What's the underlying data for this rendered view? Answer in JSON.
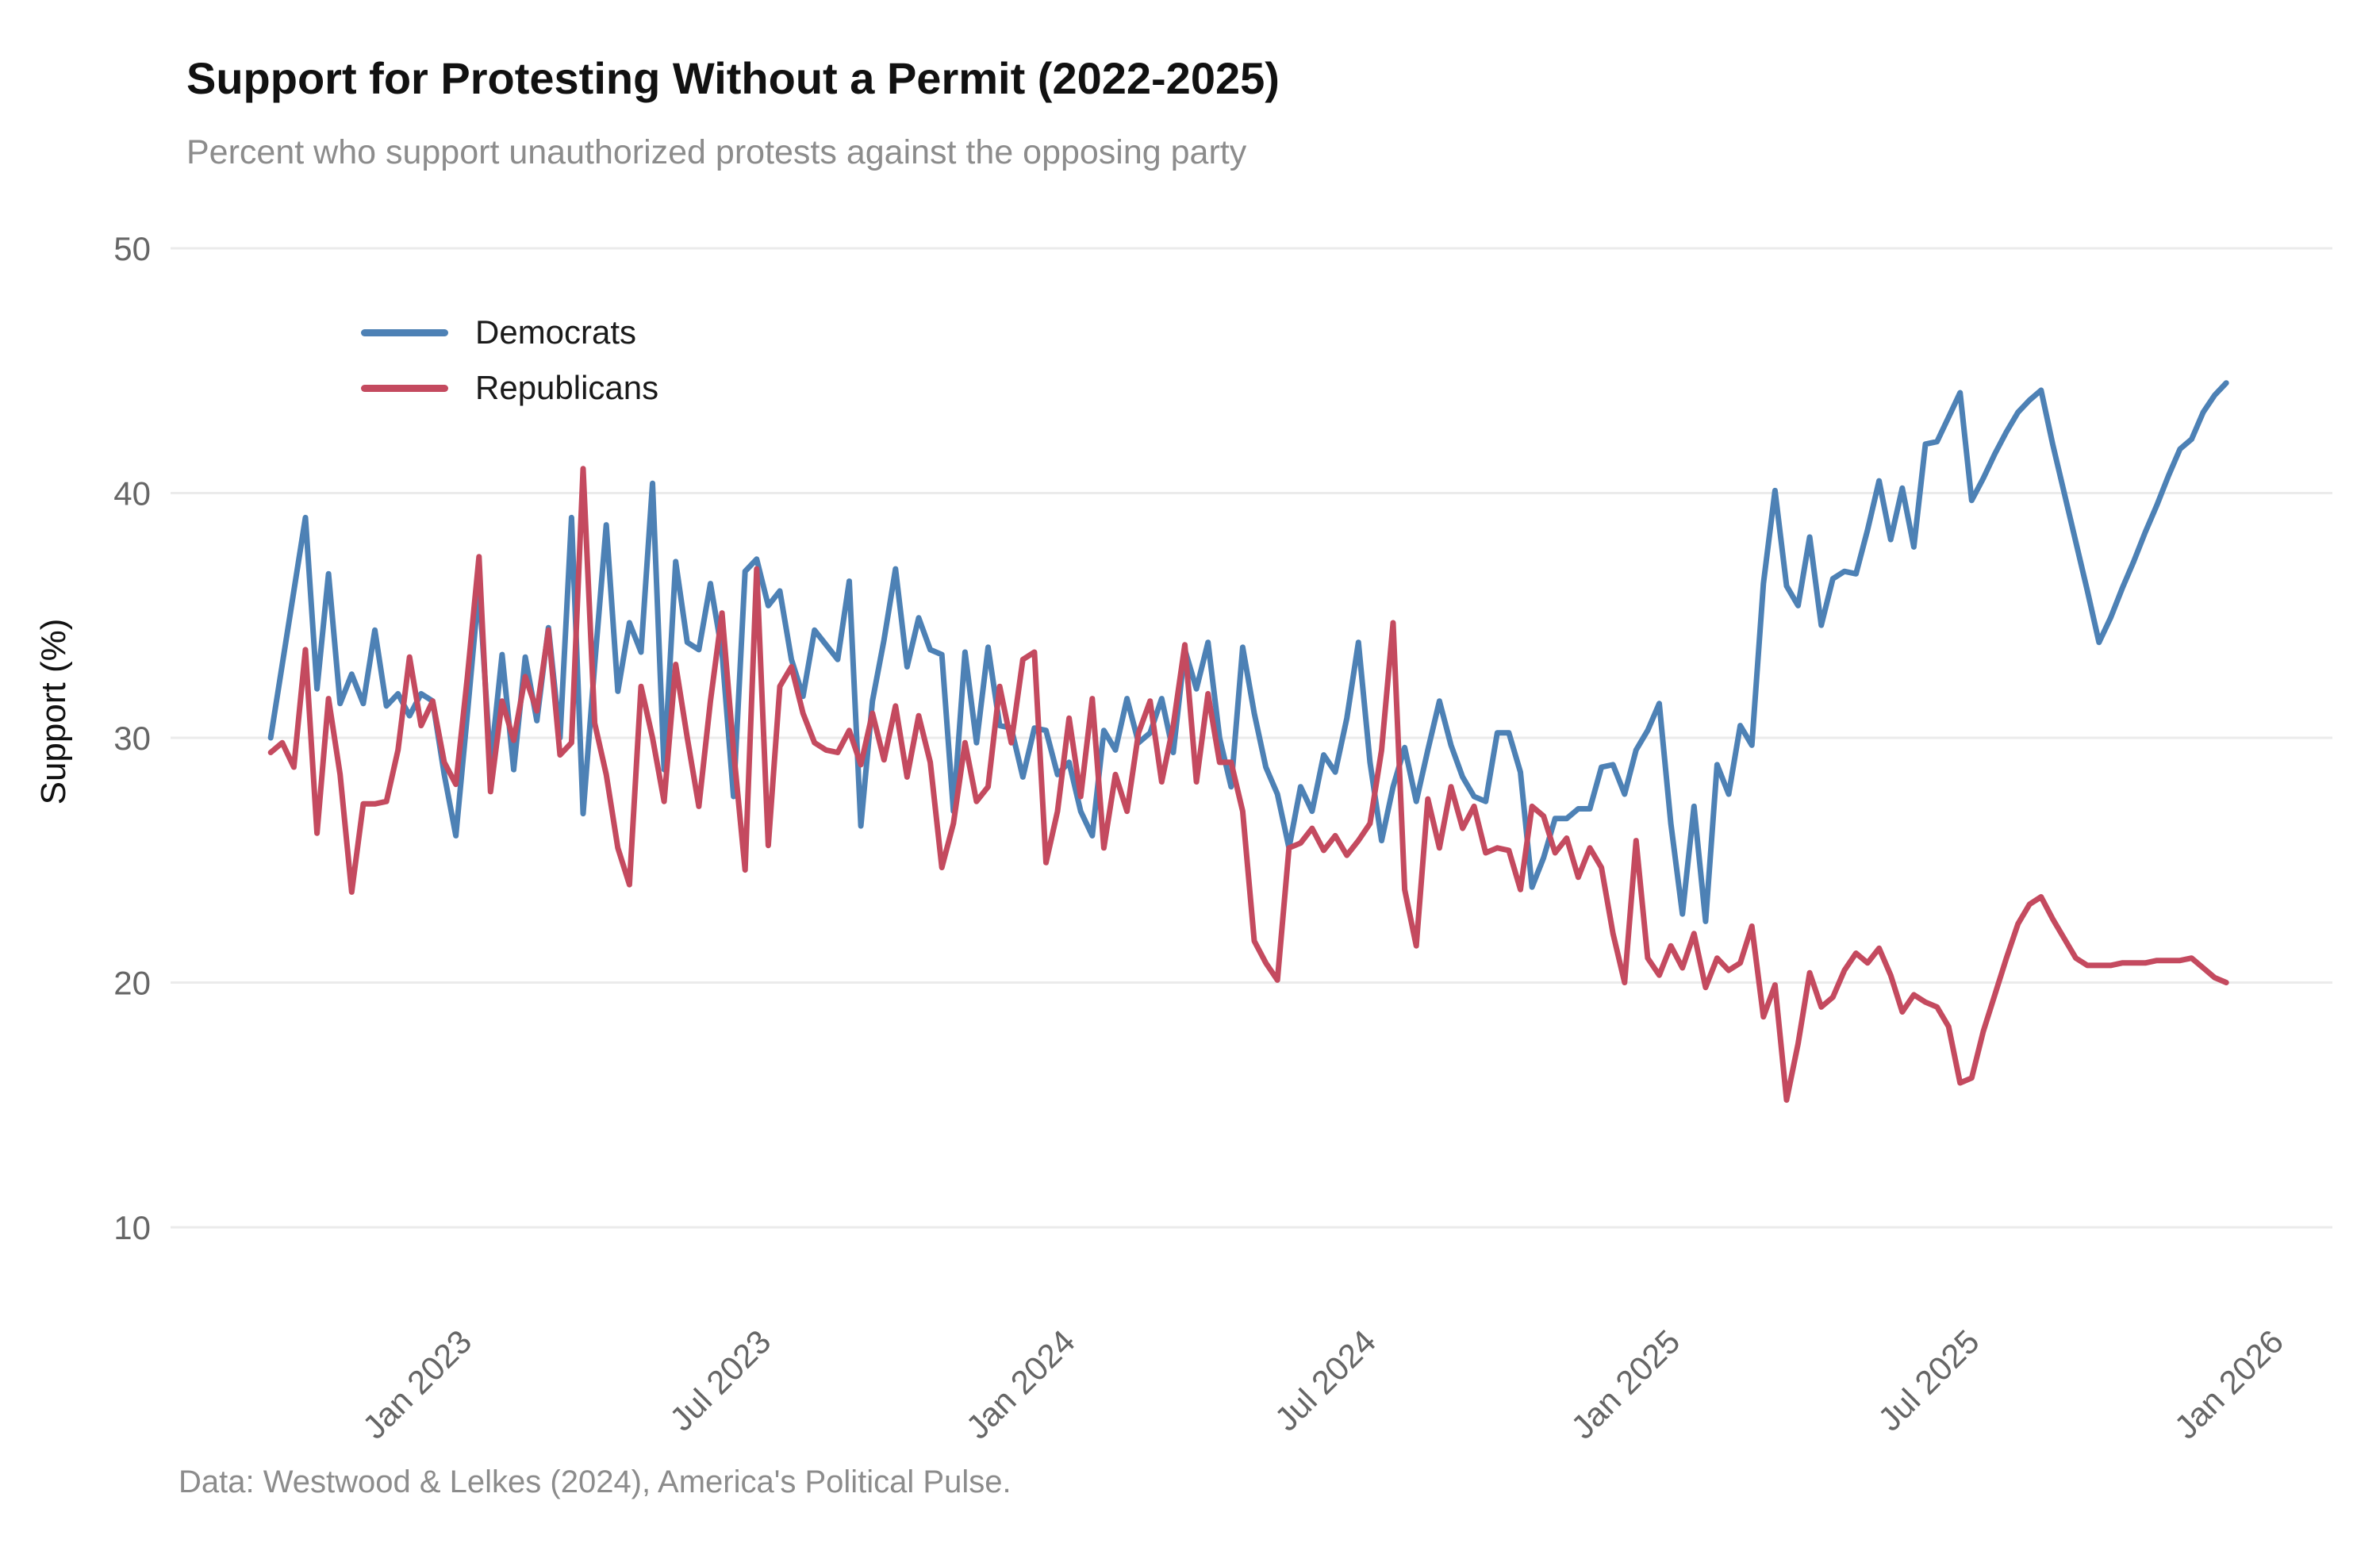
{
  "header": {
    "title": "Support for Protesting Without a Permit (2022-2025)",
    "subtitle": "Percent who support unauthorized protests against the opposing party"
  },
  "footer": {
    "caption": "Data: Westwood & Lelkes (2024), America's Political Pulse."
  },
  "legend": {
    "items": [
      {
        "label": "Democrats",
        "color": "#4d81b5"
      },
      {
        "label": "Republicans",
        "color": "#c44a5f"
      }
    ]
  },
  "chart_data": {
    "type": "line",
    "title": "Support for Protesting Without a Permit (2022-2025)",
    "subtitle": "Percent who support unauthorized protests against the opposing party",
    "xlabel": "",
    "ylabel": "Support (%)",
    "ylim": [
      10,
      50
    ],
    "yticks": [
      50,
      40,
      30,
      20,
      10
    ],
    "grid": "horizontal",
    "grid_color": "#ebebeb",
    "axis_text_color": "#666666",
    "legend_position": "top-left-inside",
    "xticks": [
      {
        "label": "Jan 2023",
        "date": "2023-01-01"
      },
      {
        "label": "Jul 2023",
        "date": "2023-07-01"
      },
      {
        "label": "Jan 2024",
        "date": "2024-01-01"
      },
      {
        "label": "Jul 2024",
        "date": "2024-07-01"
      },
      {
        "label": "Jan 2025",
        "date": "2025-01-01"
      },
      {
        "label": "Jul 2025",
        "date": "2025-07-01"
      },
      {
        "label": "Jan 2026",
        "date": "2026-01-01"
      }
    ],
    "series": [
      {
        "name": "Democrats",
        "color": "#4d81b5",
        "line_width": 7,
        "start_date": "2022-09-06",
        "interval_days": 7,
        "values": [
          30.0,
          33.0,
          36.0,
          39.0,
          32.0,
          36.7,
          31.4,
          32.6,
          31.4,
          34.4,
          31.3,
          31.8,
          30.9,
          31.8,
          31.5,
          28.5,
          26.0,
          31.0,
          36.2,
          28.9,
          33.4,
          28.7,
          33.3,
          30.7,
          34.5,
          30.0,
          39.0,
          26.9,
          33.0,
          38.7,
          31.9,
          34.7,
          33.5,
          40.4,
          28.7,
          37.2,
          33.9,
          33.6,
          36.3,
          33.5,
          27.6,
          36.8,
          37.3,
          35.4,
          36.0,
          33.2,
          31.7,
          34.4,
          33.8,
          33.2,
          36.4,
          26.4,
          31.5,
          34.0,
          36.9,
          32.9,
          34.9,
          33.6,
          33.4,
          27.0,
          33.5,
          29.8,
          33.7,
          30.5,
          30.4,
          28.4,
          30.4,
          30.3,
          28.5,
          29.0,
          27.0,
          26.0,
          30.3,
          29.5,
          31.6,
          29.8,
          30.2,
          31.6,
          29.4,
          33.6,
          32.0,
          33.9,
          30.0,
          28.0,
          33.7,
          31.0,
          28.8,
          27.7,
          25.5,
          28.0,
          27.0,
          29.3,
          28.6,
          30.8,
          33.9,
          29.0,
          25.8,
          28.0,
          29.6,
          27.4,
          29.5,
          31.5,
          29.7,
          28.4,
          27.6,
          27.4,
          30.2,
          30.2,
          28.6,
          23.9,
          25.1,
          26.7,
          26.7,
          27.1,
          27.1,
          28.8,
          28.9,
          27.7,
          29.5,
          30.3,
          31.4,
          26.5,
          22.8,
          27.2,
          22.5,
          28.9,
          27.7,
          30.5,
          29.7,
          36.3,
          40.1,
          36.2,
          35.4,
          38.2,
          34.6,
          36.5,
          36.8,
          36.7,
          38.5,
          40.5,
          38.1,
          40.2,
          37.8,
          42.0,
          42.1,
          43.1,
          44.1,
          39.7,
          40.6,
          41.6,
          42.5,
          43.3,
          43.8,
          44.2,
          42.0,
          40.0,
          38.0,
          36.0,
          33.9,
          34.9,
          36.1,
          37.2,
          38.4,
          39.5,
          40.7,
          41.8,
          42.2,
          43.3,
          44.0,
          44.5
        ]
      },
      {
        "name": "Republicans",
        "color": "#c44a5f",
        "line_width": 7,
        "start_date": "2022-09-06",
        "interval_days": 7,
        "values": [
          29.4,
          29.8,
          28.8,
          33.6,
          26.1,
          31.6,
          28.5,
          23.7,
          27.3,
          27.3,
          27.4,
          29.5,
          33.3,
          30.5,
          31.5,
          29.0,
          28.1,
          32.5,
          37.4,
          27.8,
          31.5,
          29.9,
          32.5,
          31.1,
          34.4,
          29.3,
          29.8,
          41.0,
          30.6,
          28.5,
          25.5,
          24.0,
          32.1,
          30.0,
          27.4,
          33.0,
          30.0,
          27.2,
          31.5,
          35.1,
          29.5,
          24.6,
          36.9,
          25.6,
          32.1,
          32.9,
          31.0,
          29.8,
          29.5,
          29.4,
          30.3,
          28.9,
          31.0,
          29.1,
          31.3,
          28.4,
          30.9,
          29.0,
          24.7,
          26.5,
          29.8,
          27.4,
          28.0,
          32.1,
          29.8,
          33.2,
          33.5,
          24.9,
          27.0,
          30.8,
          27.6,
          31.6,
          25.5,
          28.5,
          27.0,
          30.2,
          31.5,
          28.2,
          30.5,
          33.8,
          28.2,
          31.8,
          29.0,
          29.0,
          27.0,
          21.7,
          20.8,
          20.1,
          25.5,
          25.7,
          26.3,
          25.4,
          26.0,
          25.2,
          25.8,
          26.5,
          29.5,
          34.7,
          23.8,
          21.5,
          27.5,
          25.5,
          28.0,
          26.3,
          27.2,
          25.3,
          25.5,
          25.4,
          23.8,
          27.2,
          26.8,
          25.3,
          25.9,
          24.3,
          25.5,
          24.7,
          22.0,
          20.0,
          25.8,
          21.0,
          20.3,
          21.5,
          20.6,
          22.0,
          19.8,
          21.0,
          20.5,
          20.8,
          22.3,
          18.6,
          19.9,
          15.2,
          17.5,
          20.4,
          19.0,
          19.4,
          20.5,
          21.2,
          20.8,
          21.4,
          20.3,
          18.8,
          19.5,
          19.2,
          19.0,
          18.2,
          15.9,
          16.1,
          18.0,
          19.5,
          21.0,
          22.4,
          23.2,
          23.5,
          22.6,
          21.8,
          21.0,
          20.7,
          20.7,
          20.7,
          20.8,
          20.8,
          20.8,
          20.9,
          20.9,
          20.9,
          21.0,
          20.6,
          20.2,
          20.0
        ]
      }
    ]
  }
}
